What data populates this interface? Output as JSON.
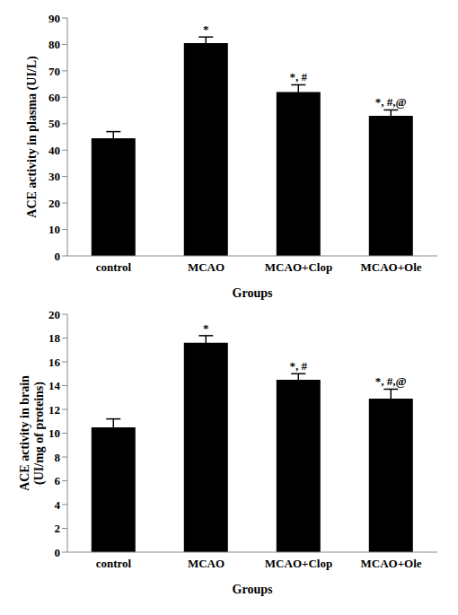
{
  "chart_data": [
    {
      "type": "bar",
      "ylabel": [
        "ACE activity in plasma (UI/L)"
      ],
      "xlabel": "Groups",
      "categories": [
        "control",
        "MCAO",
        "MCAO+Clop",
        "MCAO+Ole"
      ],
      "values": [
        44.5,
        80.5,
        62,
        53
      ],
      "errors": [
        2.5,
        2.3,
        2.7,
        2.2
      ],
      "annotations": [
        null,
        "*",
        "*, #",
        "*, #,@"
      ],
      "color": "#000000",
      "ylim": [
        0,
        90
      ],
      "yticks": [
        0,
        10,
        20,
        30,
        40,
        50,
        60,
        70,
        80,
        90
      ],
      "grid": false
    },
    {
      "type": "bar",
      "ylabel": [
        "ACE activity in brain",
        "(UI/mg of proteins)"
      ],
      "xlabel": "Groups",
      "categories": [
        "control",
        "MCAO",
        "MCAO+Clop",
        "MCAO+Ole"
      ],
      "values": [
        10.5,
        17.6,
        14.5,
        12.9
      ],
      "errors": [
        0.7,
        0.6,
        0.5,
        0.8
      ],
      "annotations": [
        null,
        "*",
        "*, #",
        "*, #,@"
      ],
      "color": "#000000",
      "ylim": [
        0,
        20
      ],
      "yticks": [
        0,
        2,
        4,
        6,
        8,
        10,
        12,
        14,
        16,
        18,
        20
      ],
      "grid": false
    }
  ]
}
